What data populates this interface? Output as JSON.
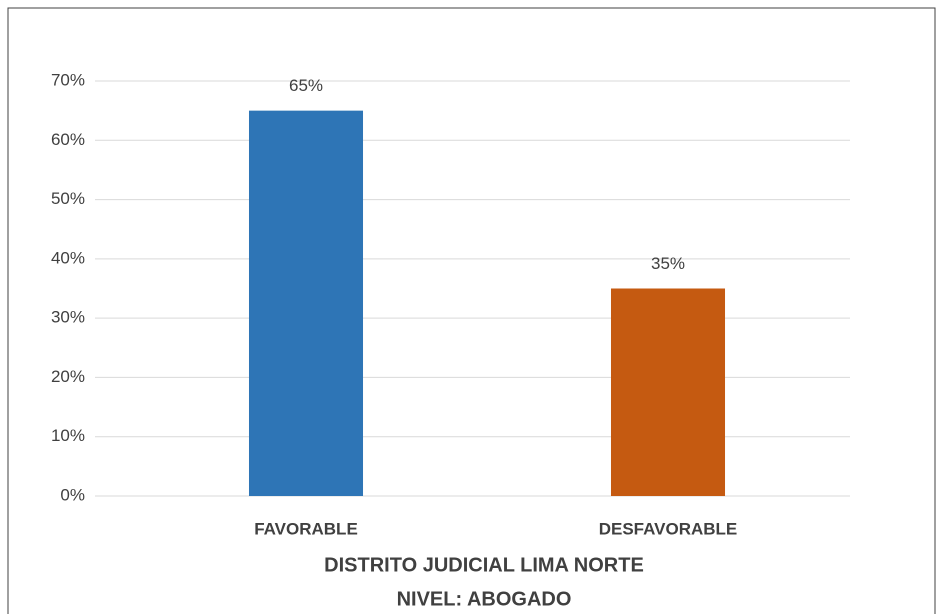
{
  "chart_data": {
    "type": "bar",
    "categories": [
      "FAVORABLE",
      "DESFAVORABLE"
    ],
    "values": [
      65,
      35
    ],
    "value_labels": [
      "65%",
      "35%"
    ],
    "colors": [
      "#2e75b6",
      "#c55a11"
    ],
    "xlabel": [
      "DISTRITO JUDICIAL LIMA NORTE",
      "NIVEL: ABOGADO"
    ],
    "ylim": [
      0,
      70
    ],
    "yticks": [
      {
        "value": 0,
        "label": "0%"
      },
      {
        "value": 10,
        "label": "10%"
      },
      {
        "value": 20,
        "label": "20%"
      },
      {
        "value": 30,
        "label": "30%"
      },
      {
        "value": 40,
        "label": "40%"
      },
      {
        "value": 50,
        "label": "50%"
      },
      {
        "value": 60,
        "label": "60%"
      },
      {
        "value": 70,
        "label": "70%"
      }
    ],
    "grid": true
  }
}
